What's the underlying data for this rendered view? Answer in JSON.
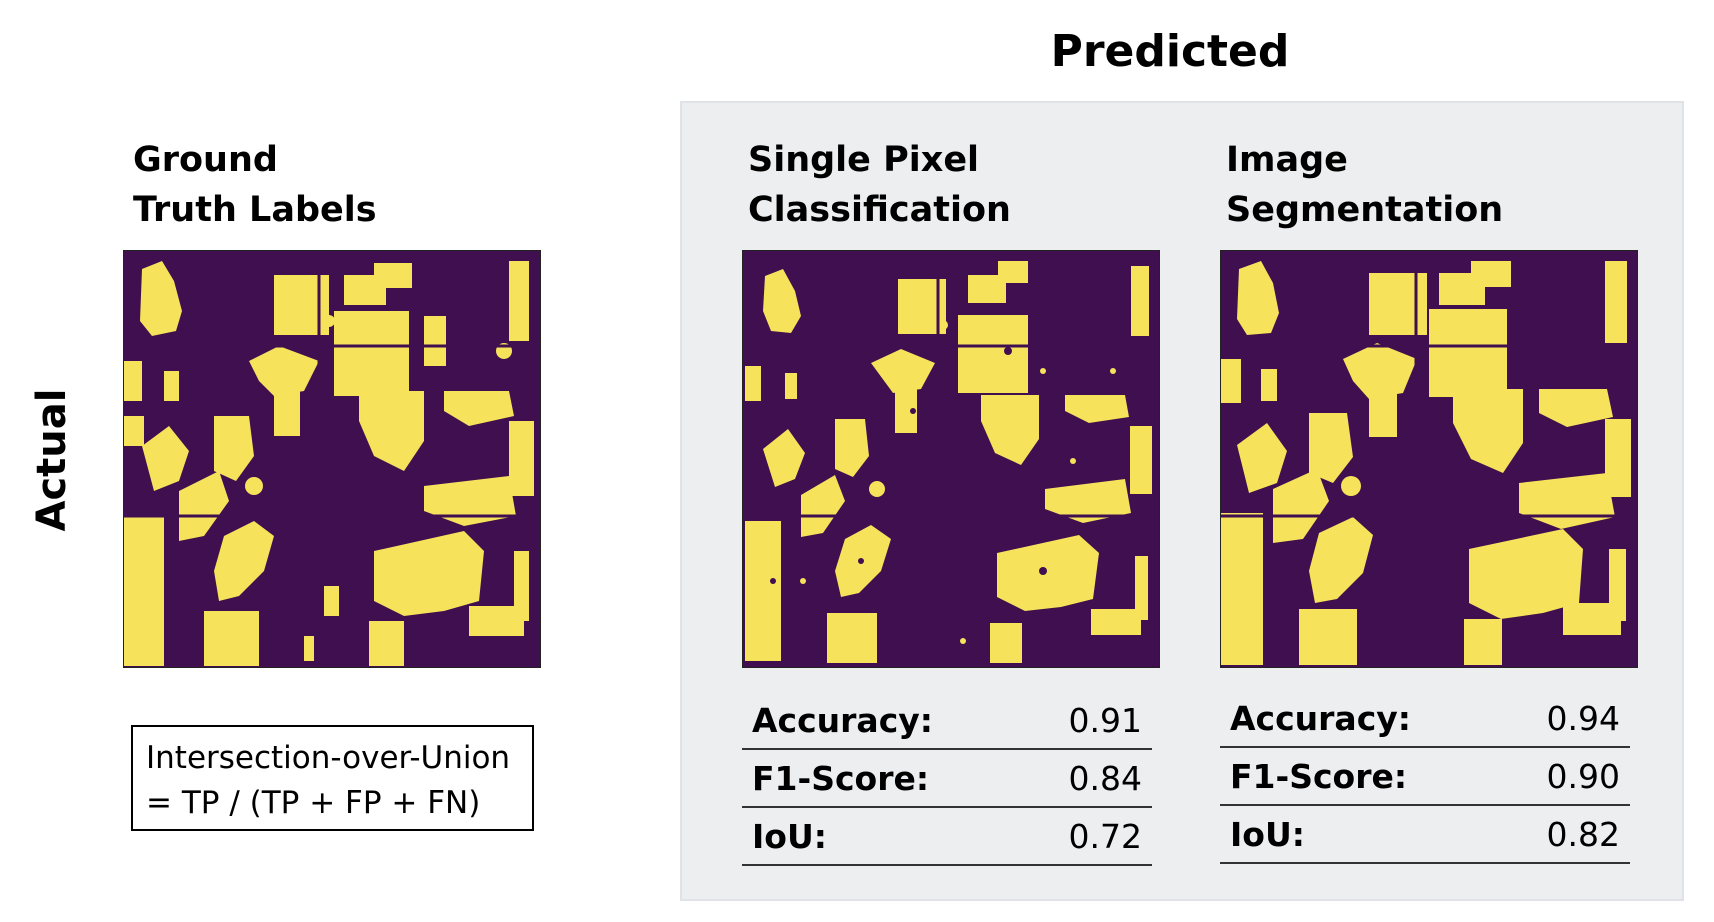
{
  "predicted_title": "Predicted",
  "actual_label": "Actual",
  "colors": {
    "background_class": "#3f0f4f",
    "foreground_class": "#f6e25b",
    "panel_fill": "#eceeef"
  },
  "panels": [
    {
      "title_line1": "Ground",
      "title_line2": "Truth Labels",
      "metrics": []
    },
    {
      "title_line1": "Single Pixel",
      "title_line2": "Classification",
      "metrics": [
        {
          "name": "Accuracy:",
          "value": "0.91"
        },
        {
          "name": "F1-Score:",
          "value": "0.84"
        },
        {
          "name": "IoU:",
          "value": "0.72"
        }
      ]
    },
    {
      "title_line1": "Image",
      "title_line2": "Segmentation",
      "metrics": [
        {
          "name": "Accuracy:",
          "value": "0.94"
        },
        {
          "name": "F1-Score:",
          "value": "0.90"
        },
        {
          "name": "IoU:",
          "value": "0.82"
        }
      ]
    }
  ],
  "iou_box": {
    "line1": "Intersection-over-Union",
    "line2": "= TP / (TP + FP + FN)"
  }
}
